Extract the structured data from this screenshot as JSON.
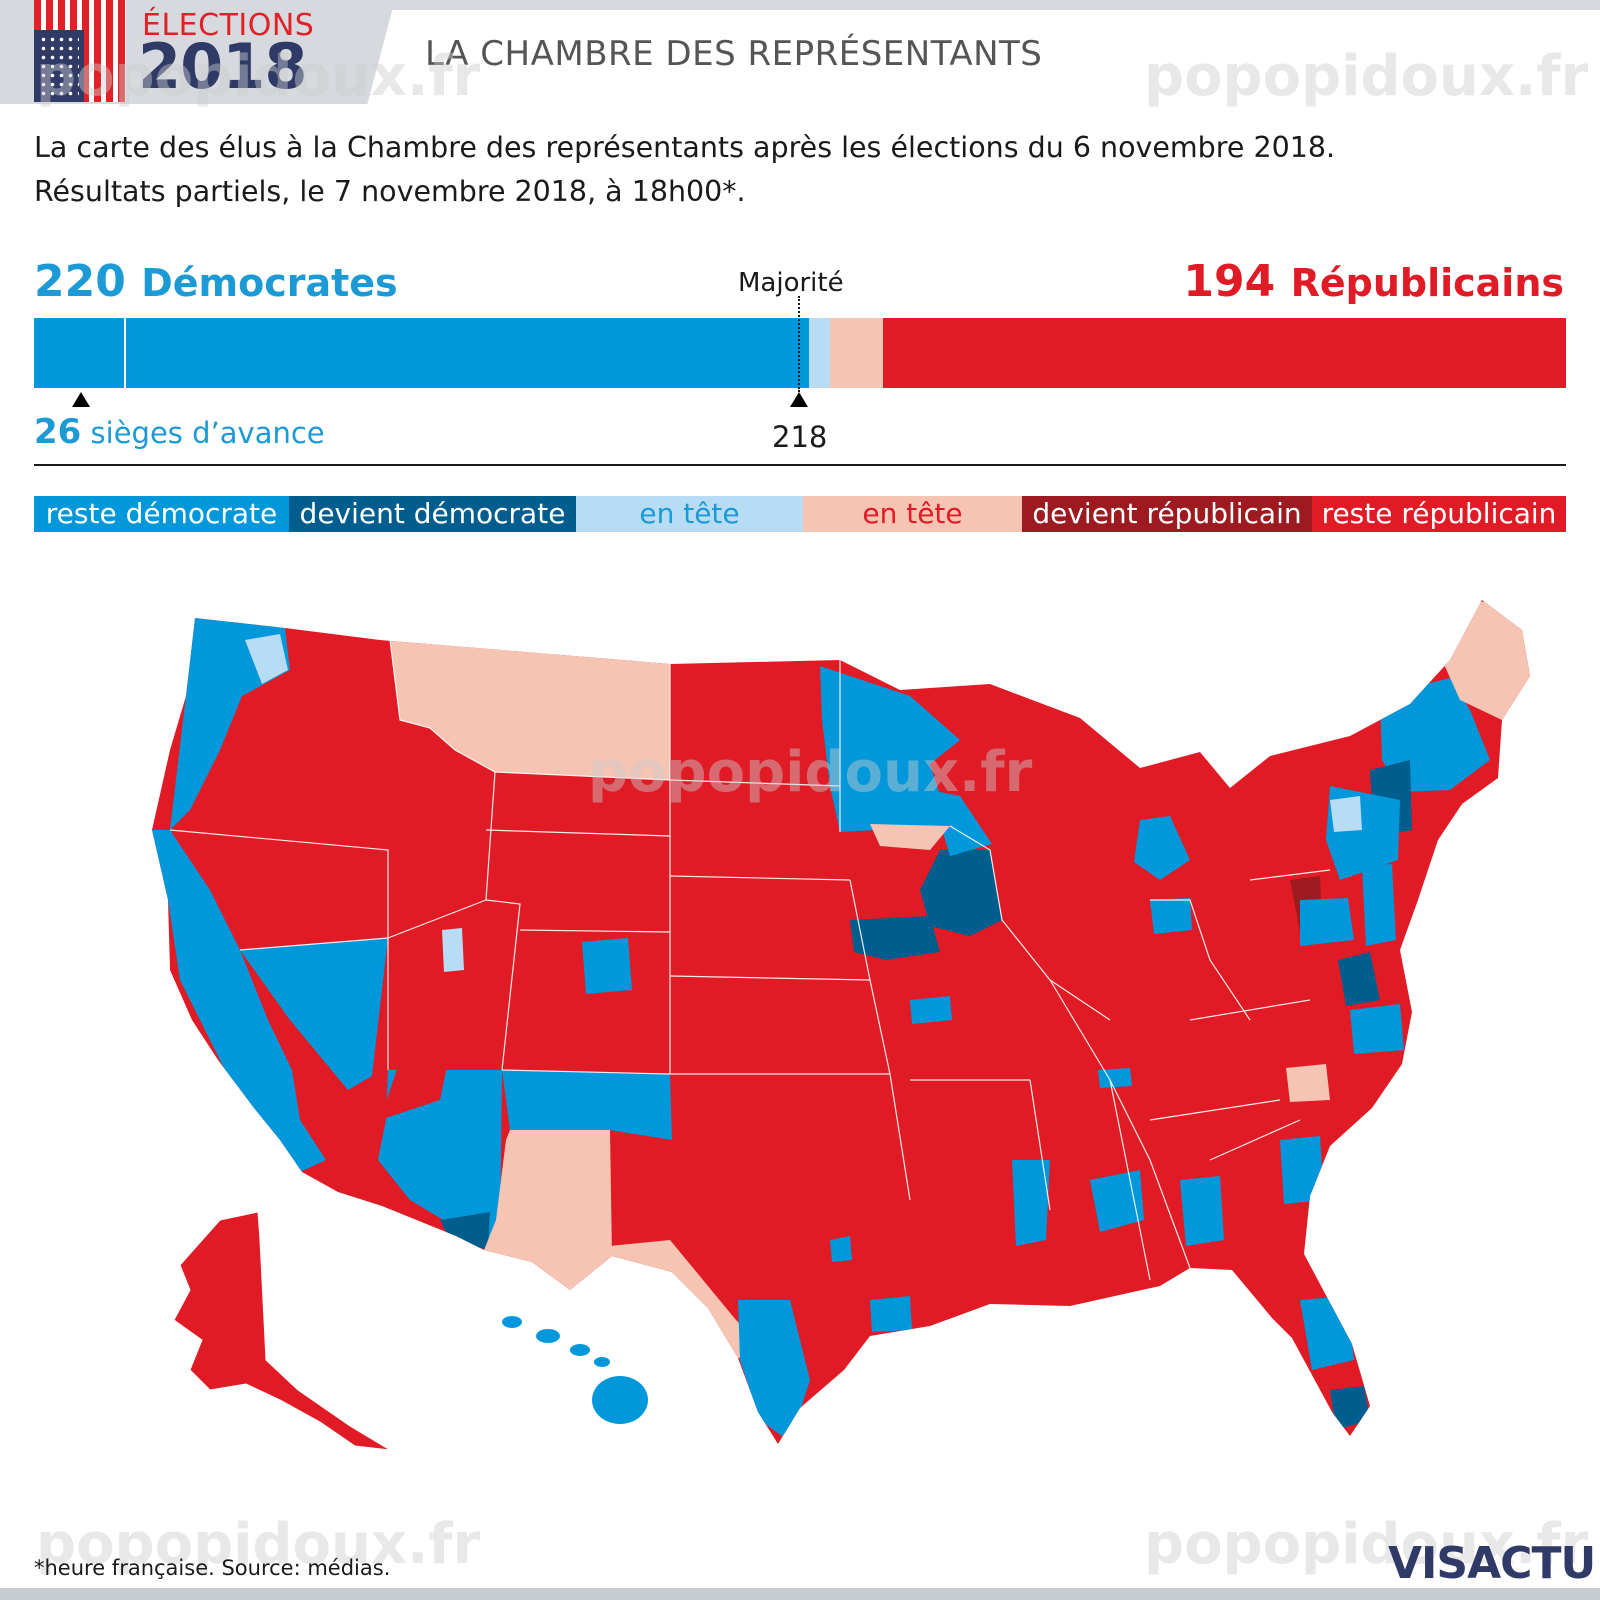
{
  "header": {
    "logo_top": "ÉLECTIONS",
    "logo_year": "2018",
    "title": "LA CHAMBRE DES REPRÉSENTANTS"
  },
  "subtitle": {
    "line1": "La carte des élus à la Chambre des représentants après les élections du 6 novembre 2018.",
    "line2": "Résultats partiels, le 7 novembre 2018, à 18h00*."
  },
  "score": {
    "dem_count": "220",
    "dem_label": "Démocrates",
    "rep_count": "194",
    "rep_label": "Républicains",
    "majority_label": "Majorité",
    "majority_number": "218",
    "lead_number": "26",
    "lead_text": "sièges d’avance",
    "dem_seats": 220,
    "dem_lead_seats": 6,
    "rep_lead_seats": 15,
    "rep_seats": 194,
    "dem_color": "#0098da",
    "dem_lead_color": "#b7dcf3",
    "rep_lead_color": "#f6c4b2",
    "rep_color": "#e11b25"
  },
  "legend": {
    "items": [
      {
        "label": "reste démocrate",
        "color": "#0098da"
      },
      {
        "label": "devient démocrate",
        "color": "#005e8f"
      },
      {
        "label": "en tête",
        "color": "#b7dcf3"
      },
      {
        "label": "en tête",
        "color": "#f6c4b2"
      },
      {
        "label": "devient républicain",
        "color": "#9c1a20"
      },
      {
        "label": "reste républicain",
        "color": "#e11b25"
      }
    ]
  },
  "watermark": "popopidoux.fr",
  "footnote": "*heure française.  Source: médias.",
  "brand": "VISACTU"
}
